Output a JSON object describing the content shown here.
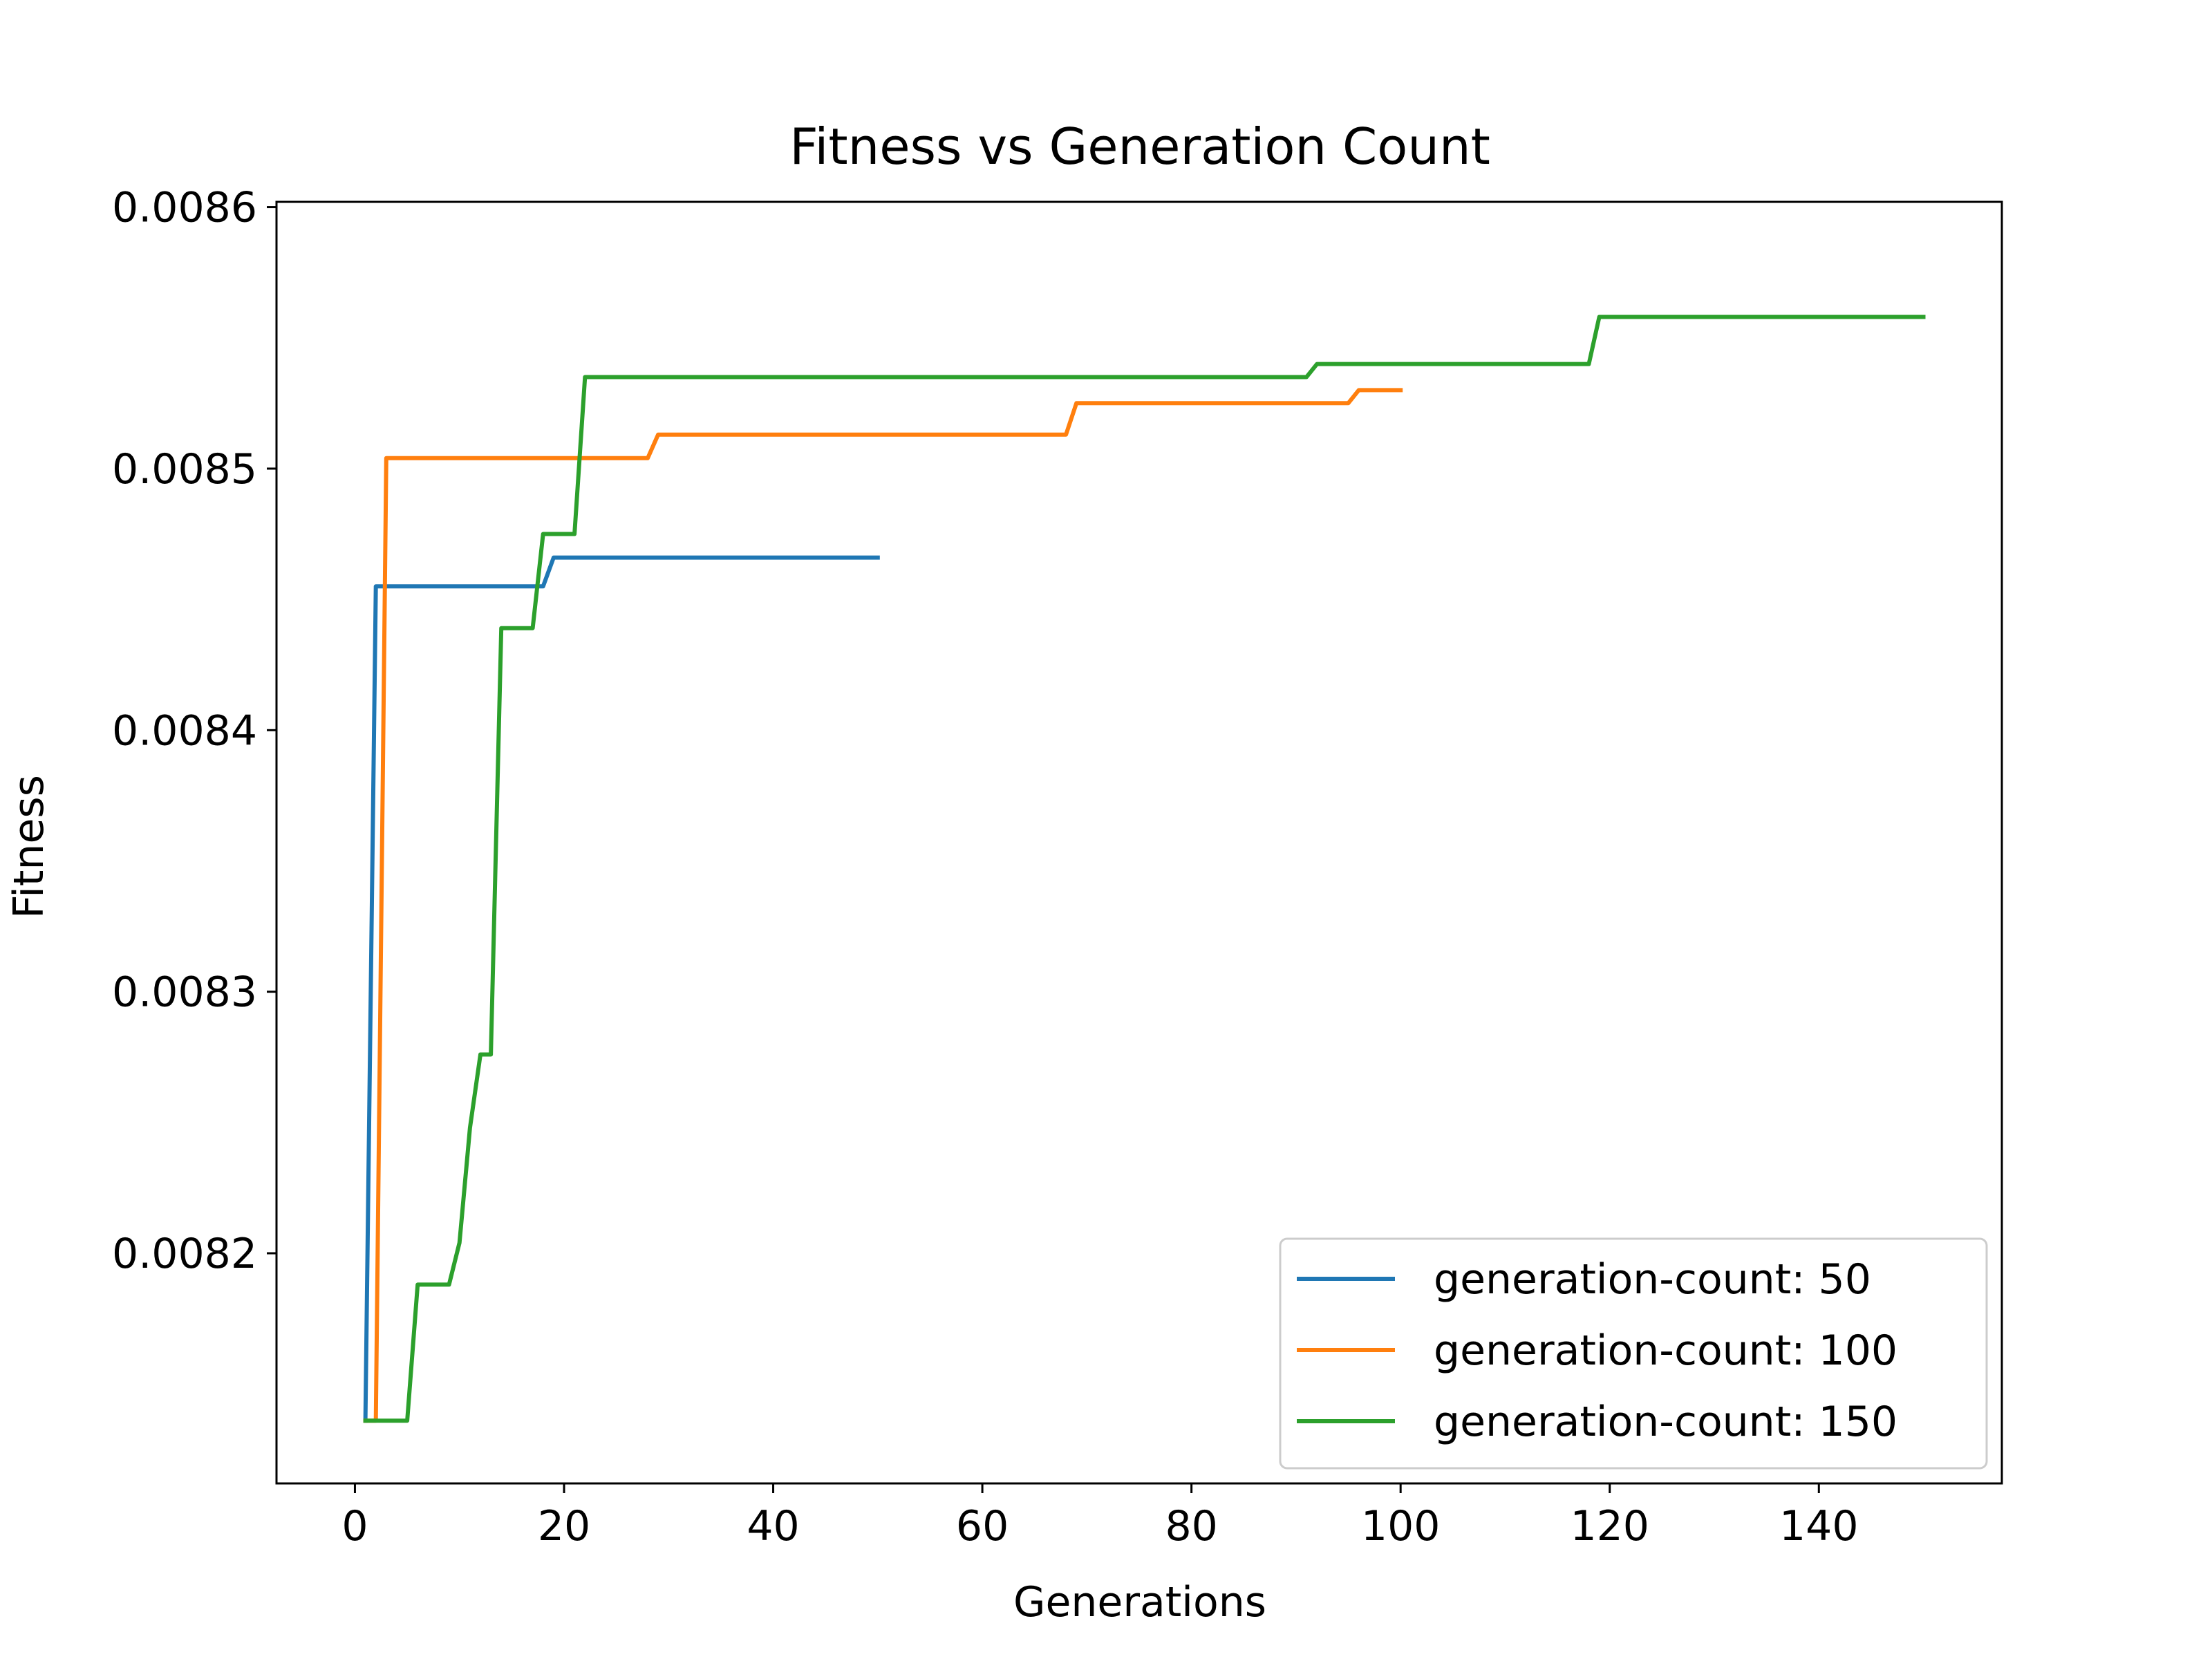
{
  "chart_data": {
    "type": "line",
    "title": "Fitness vs Generation Count",
    "xlabel": "Generations",
    "ylabel": "Fitness",
    "xlim": [
      -7.5,
      157.5
    ],
    "ylim": [
      0.008112,
      0.008602
    ],
    "xticks": [
      0,
      20,
      40,
      60,
      80,
      100,
      120,
      140
    ],
    "xtick_labels": [
      "0",
      "20",
      "40",
      "60",
      "80",
      "100",
      "120",
      "140"
    ],
    "yticks": [
      0.0082,
      0.0083,
      0.0084,
      0.0085,
      0.0086
    ],
    "ytick_labels": [
      "0.0082",
      "0.0083",
      "0.0084",
      "0.0085",
      "0.0086"
    ],
    "grid": false,
    "legend": {
      "position": "lower-right"
    },
    "series": [
      {
        "name": "generation-count: 50",
        "color": "#1f77b4",
        "points": [
          [
            1,
            0.008136
          ],
          [
            2,
            0.008455
          ],
          [
            18,
            0.008455
          ],
          [
            19,
            0.008466
          ],
          [
            50,
            0.008466
          ]
        ]
      },
      {
        "name": "generation-count: 100",
        "color": "#ff7f0e",
        "points": [
          [
            1,
            0.008136
          ],
          [
            2,
            0.008136
          ],
          [
            3,
            0.008504
          ],
          [
            28,
            0.008504
          ],
          [
            29,
            0.008513
          ],
          [
            68,
            0.008513
          ],
          [
            69,
            0.008525
          ],
          [
            95,
            0.008525
          ],
          [
            96,
            0.00853
          ],
          [
            100,
            0.00853
          ]
        ]
      },
      {
        "name": "generation-count: 150",
        "color": "#2ca02c",
        "points": [
          [
            1,
            0.008136
          ],
          [
            5,
            0.008136
          ],
          [
            6,
            0.008188
          ],
          [
            9,
            0.008188
          ],
          [
            10,
            0.008204
          ],
          [
            11,
            0.008248
          ],
          [
            12,
            0.008276
          ],
          [
            13,
            0.008276
          ],
          [
            14,
            0.008439
          ],
          [
            17,
            0.008439
          ],
          [
            18,
            0.008475
          ],
          [
            21,
            0.008475
          ],
          [
            22,
            0.008535
          ],
          [
            91,
            0.008535
          ],
          [
            92,
            0.00854
          ],
          [
            118,
            0.00854
          ],
          [
            119,
            0.008558
          ],
          [
            150,
            0.008558
          ]
        ]
      }
    ]
  }
}
